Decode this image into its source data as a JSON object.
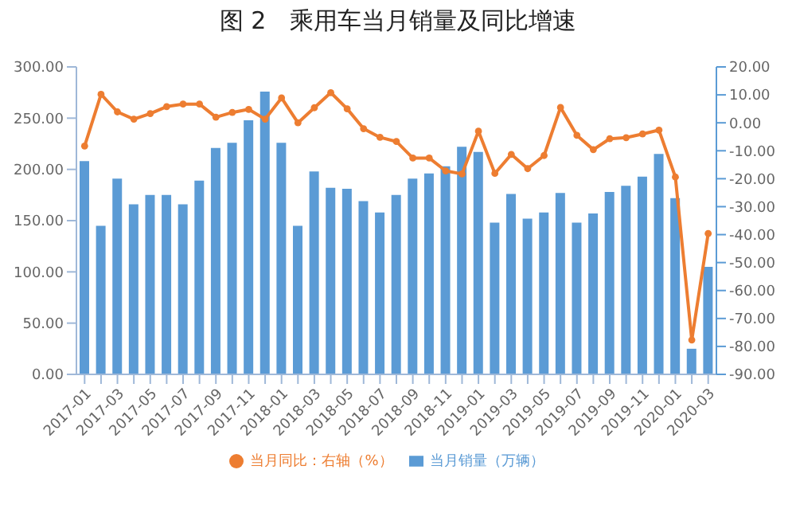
{
  "chart_data": {
    "type": "bar",
    "title": "图 2　乘用车当月销量及同比增速",
    "categories": [
      "2017-01",
      null,
      "2017-03",
      null,
      "2017-05",
      null,
      "2017-07",
      null,
      "2017-09",
      null,
      "2017-11",
      null,
      "2018-01",
      null,
      "2018-03",
      null,
      "2018-05",
      null,
      "2018-07",
      null,
      "2018-09",
      null,
      "2018-11",
      null,
      "2019-01",
      null,
      "2019-03",
      null,
      "2019-05",
      null,
      "2019-07",
      null,
      "2019-09",
      null,
      "2019-11",
      null,
      "2020-01",
      null,
      "2020-03"
    ],
    "series": [
      {
        "name": "当月销量（万辆）",
        "color": "#5b9bd5",
        "values": [
          208,
          145,
          191,
          166,
          175,
          175,
          166,
          189,
          221,
          226,
          248,
          276,
          226,
          145,
          198,
          182,
          181,
          169,
          158,
          175,
          191,
          196,
          203,
          222,
          217,
          148,
          176,
          152,
          158,
          177,
          148,
          157,
          178,
          184,
          193,
          215,
          172,
          25,
          105
        ]
      },
      {
        "name": "当月同比：右轴（%）",
        "type": "line",
        "axis": "y2",
        "color": "#ed7d31",
        "values": [
          -8.3,
          10.2,
          3.9,
          1.3,
          3.3,
          5.8,
          6.7,
          6.7,
          2,
          3.7,
          4.8,
          1.3,
          8.9,
          0,
          5.4,
          10.8,
          5,
          -2.1,
          -5.2,
          -6.7,
          -12.6,
          -12.6,
          -17.2,
          -18.3,
          -3,
          -18.1,
          -11.3,
          -16.4,
          -11.7,
          5.5,
          -4.5,
          -9.6,
          -5.7,
          -5.3,
          -4,
          -2.6,
          -19.4,
          -77.7,
          -39.6
        ]
      }
    ],
    "ylim": [
      0,
      300
    ],
    "yticks": [
      {
        "value": 0,
        "label": "0.00"
      },
      {
        "value": 50,
        "label": "50.00"
      },
      {
        "value": 100,
        "label": "100.00"
      },
      {
        "value": 150,
        "label": "150.00"
      },
      {
        "value": 200,
        "label": "200.00"
      },
      {
        "value": 250,
        "label": "250.00"
      },
      {
        "value": 300,
        "label": "300.00"
      }
    ],
    "y2lim": [
      -90,
      20
    ],
    "y2ticks": [
      {
        "value": -90,
        "label": "-90.00"
      },
      {
        "value": -80,
        "label": "-80.00"
      },
      {
        "value": -70,
        "label": "-70.00"
      },
      {
        "value": -60,
        "label": "-60.00"
      },
      {
        "value": -50,
        "label": "-50.00"
      },
      {
        "value": -40,
        "label": "-40.00"
      },
      {
        "value": -30,
        "label": "-30.00"
      },
      {
        "value": -20,
        "label": "-20.00"
      },
      {
        "value": -10,
        "label": "-10.00"
      },
      {
        "value": 0,
        "label": "0.00"
      },
      {
        "value": 10,
        "label": "10.00"
      },
      {
        "value": 20,
        "label": "20.00"
      }
    ],
    "marker": "circle",
    "legend": "bottom",
    "grid": false
  }
}
